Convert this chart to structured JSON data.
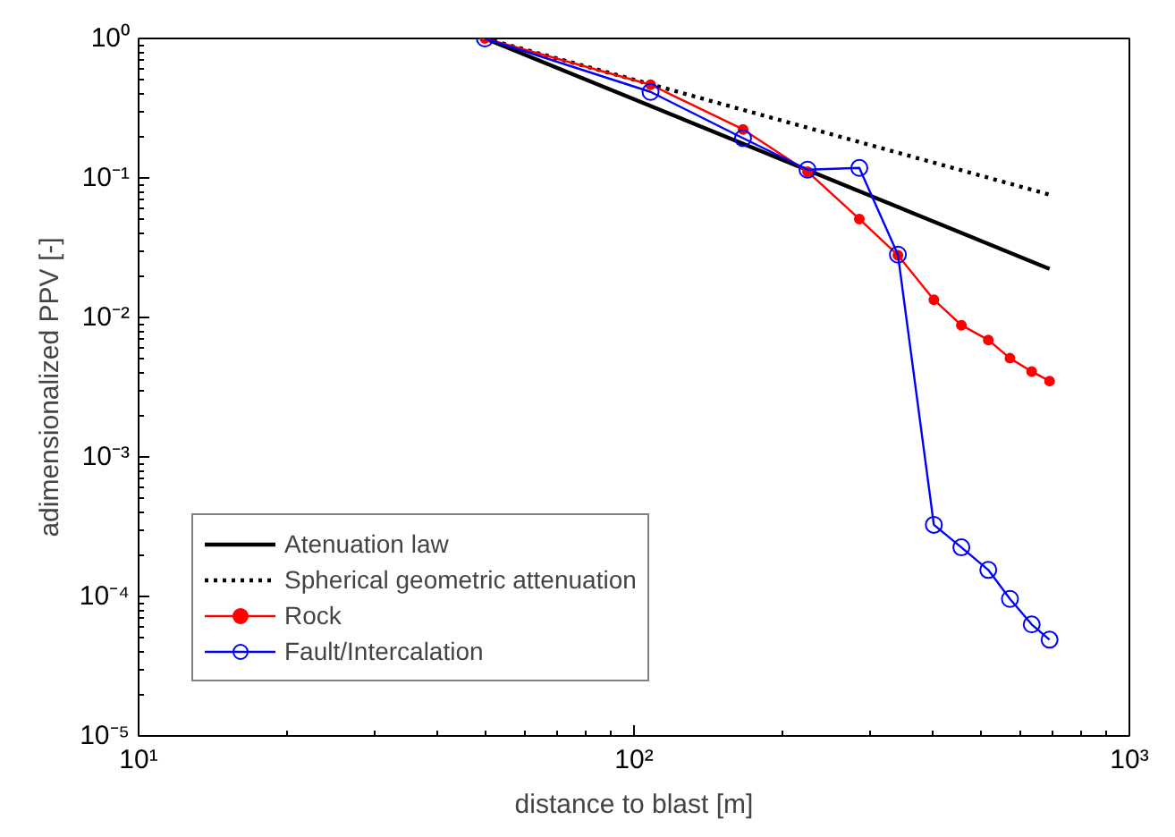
{
  "chart_data": {
    "type": "line",
    "xlabel": "distance to blast [m]",
    "ylabel": "adimensionalized PPV [-]",
    "log": "xy",
    "grid": false,
    "legend": "bottom left",
    "xlim": [
      10,
      1000
    ],
    "ylim": [
      1e-05,
      1
    ],
    "xticks": [
      {
        "value": 10,
        "label": "10¹"
      },
      {
        "value": 100,
        "label": "10²"
      },
      {
        "value": 1000,
        "label": "10³"
      }
    ],
    "yticks": [
      {
        "value": 1e-05,
        "label": "10⁻⁵"
      },
      {
        "value": 0.0001,
        "label": "10⁻⁴"
      },
      {
        "value": 0.001,
        "label": "10⁻³"
      },
      {
        "value": 0.01,
        "label": "10⁻²"
      },
      {
        "value": 0.1,
        "label": "10⁻¹"
      },
      {
        "value": 1,
        "label": "10⁰"
      }
    ],
    "series": [
      {
        "name": "Atenuation law",
        "color": "#000000",
        "marker": "none",
        "line_style": "solid",
        "x": [
          50,
          690
        ],
        "values": [
          1,
          0.0223
        ]
      },
      {
        "name": "Spherical geometric attenuation",
        "color": "#000000",
        "marker": "none",
        "line_style": "dotted",
        "x": [
          50,
          690
        ],
        "values": [
          1,
          0.0759
        ]
      },
      {
        "name": "Rock",
        "color": "#ff0000",
        "marker": "circle",
        "line_style": "solid",
        "x": [
          50,
          108,
          166,
          224,
          285,
          341,
          403,
          458,
          519,
          574,
          635,
          690
        ],
        "values": [
          1,
          0.466,
          0.223,
          0.111,
          0.0508,
          0.0279,
          0.0134,
          0.0088,
          0.0069,
          0.0051,
          0.0041,
          0.0035
        ]
      },
      {
        "name": "Fault/Intercalation",
        "color": "#0000ff",
        "marker": "circle",
        "line_style": "solid",
        "x": [
          50,
          108,
          166,
          224,
          285,
          341,
          403,
          458,
          519,
          574,
          635,
          690
        ],
        "values": [
          1,
          0.414,
          0.193,
          0.1146,
          0.118,
          0.0282,
          0.000326,
          0.000225,
          0.000155,
          9.6e-05,
          6.3e-05,
          4.9e-05
        ]
      }
    ]
  }
}
